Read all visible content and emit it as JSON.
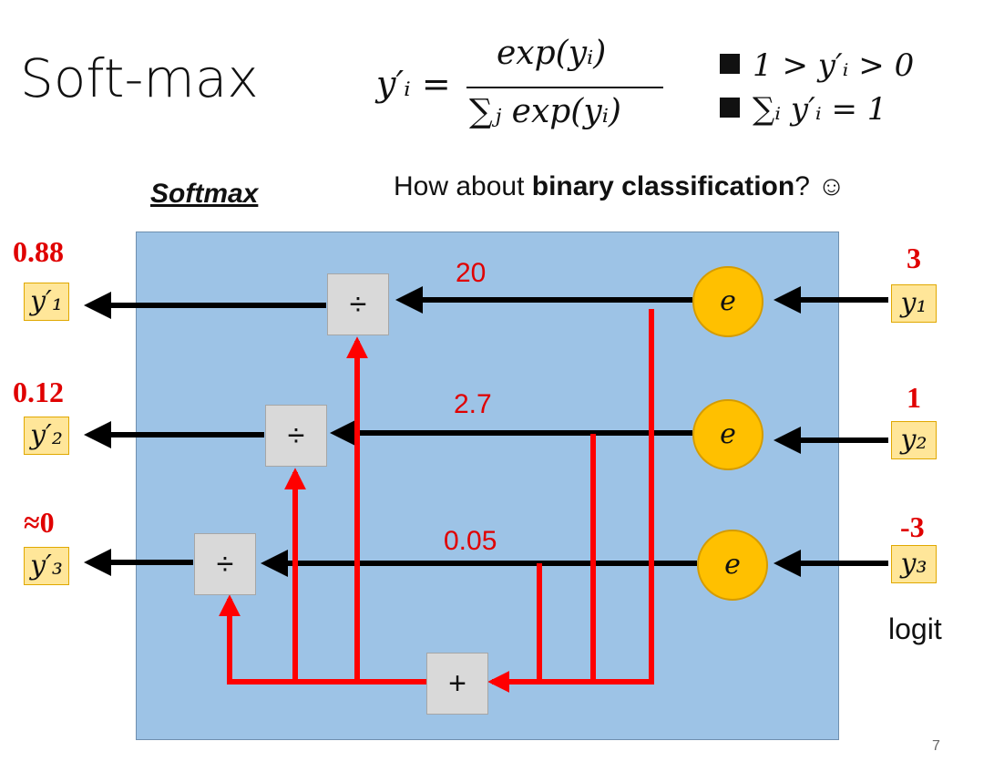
{
  "title": "Soft-max",
  "formula": {
    "lhs": "y′ᵢ =",
    "numerator": "exp(yᵢ)",
    "denominator": "∑ⱼ exp(yᵢ)"
  },
  "conditions": [
    "1 > y′ᵢ > 0",
    "∑ᵢ y′ᵢ  = 1"
  ],
  "diagram_label": "Softmax",
  "question": {
    "prefix": "How about ",
    "bold": "binary classification",
    "suffix": "? ☺"
  },
  "outputs": [
    {
      "value": "0.88",
      "label": "y′₁"
    },
    {
      "value": "0.12",
      "label": "y′₂"
    },
    {
      "value": "≈0",
      "label": "y′₃"
    }
  ],
  "inputs": [
    {
      "value": "3",
      "label": "y₁"
    },
    {
      "value": "1",
      "label": "y₂"
    },
    {
      "value": "-3",
      "label": "y₃"
    }
  ],
  "exp_values": [
    "20",
    "2.7",
    "0.05"
  ],
  "exp_symbol": "e",
  "divide_symbol": "÷",
  "sum_symbol": "+",
  "input_caption": "logit",
  "page_number": "7",
  "colors": {
    "box": "#9dc3e6",
    "red": "#ff0000",
    "circle": "#ffc000",
    "label_box": "#ffe699"
  }
}
